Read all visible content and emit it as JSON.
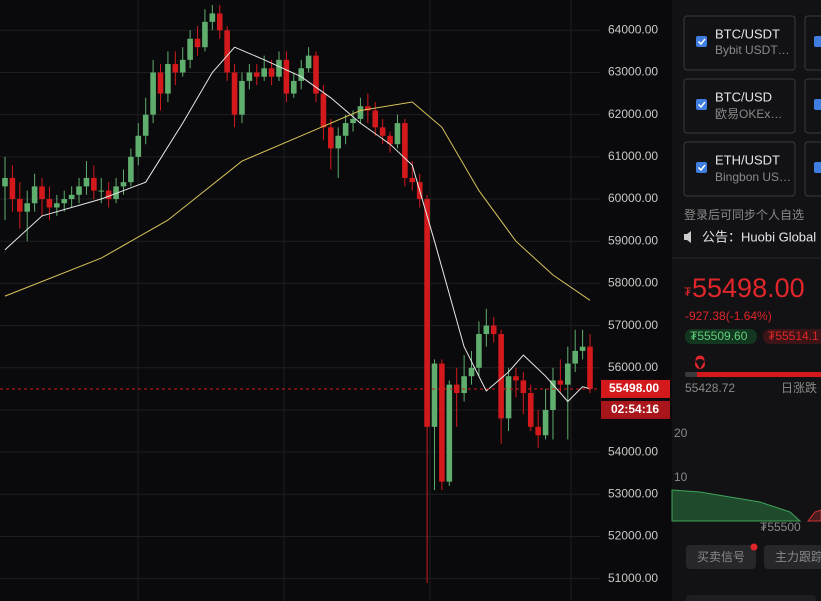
{
  "chart_data": {
    "type": "candlestick",
    "open": [
      60300,
      60500,
      60000,
      59700,
      59900,
      60300,
      60000,
      59800,
      59900,
      60000,
      60100,
      60300,
      60500,
      60200,
      60200,
      60000,
      60300,
      60400,
      61000,
      61500,
      62000,
      63000,
      62500,
      63200,
      63000,
      63300,
      63800,
      63600,
      64200,
      64400,
      64000,
      63000,
      62000,
      62800,
      63000,
      62900,
      63100,
      62900,
      63300,
      62500,
      62800,
      63100,
      63400,
      62500,
      61700,
      61200,
      61500,
      61800,
      61900,
      62200,
      62100,
      61700,
      61500,
      61300,
      61800,
      60500,
      60400,
      60000,
      54600,
      56100,
      53300,
      55600,
      55400,
      55800,
      56000,
      56800,
      57000,
      56800,
      54800,
      55800,
      55700,
      55400,
      54600,
      54400,
      55000,
      55700,
      55600,
      56100,
      56400,
      56500
    ],
    "high": [
      61000,
      60800,
      60400,
      60200,
      60600,
      60500,
      60300,
      60100,
      60200,
      60300,
      60500,
      60900,
      60800,
      60500,
      60400,
      60500,
      60700,
      61200,
      61800,
      62400,
      63300,
      63200,
      63500,
      63500,
      63600,
      64000,
      64100,
      64500,
      64600,
      64600,
      64100,
      63200,
      63000,
      63200,
      63200,
      63400,
      63300,
      63500,
      63500,
      63000,
      63300,
      63600,
      63500,
      62700,
      61900,
      61700,
      62000,
      62100,
      62400,
      62500,
      62300,
      61900,
      61600,
      62000,
      61900,
      60900,
      60600,
      60100,
      56200,
      56200,
      55700,
      56000,
      56300,
      56400,
      57100,
      57400,
      57200,
      56900,
      56000,
      56000,
      55900,
      55600,
      55000,
      55500,
      56000,
      56200,
      56500,
      56900,
      56900,
      56800
    ],
    "low": [
      59500,
      59700,
      59300,
      59000,
      59700,
      59600,
      59500,
      59600,
      59700,
      59800,
      59900,
      60100,
      60000,
      59900,
      59800,
      59900,
      60100,
      60300,
      60800,
      61300,
      61800,
      62100,
      62300,
      62700,
      62900,
      63100,
      63400,
      63500,
      64000,
      63800,
      62800,
      61700,
      61800,
      62600,
      62700,
      62800,
      62700,
      62800,
      62300,
      62400,
      62600,
      63000,
      62300,
      61400,
      60700,
      60500,
      61300,
      61600,
      61800,
      61800,
      61500,
      61300,
      61100,
      61200,
      60300,
      60200,
      59800,
      50900,
      53100,
      53100,
      53200,
      54600,
      55200,
      55600,
      55800,
      56500,
      56600,
      54200,
      54500,
      55300,
      54900,
      54500,
      54100,
      54300,
      54300,
      55400,
      54300,
      55900,
      56200,
      55400
    ],
    "close": [
      60500,
      60000,
      59700,
      59900,
      60300,
      60000,
      59800,
      59900,
      60000,
      60100,
      60300,
      60500,
      60200,
      60200,
      60000,
      60300,
      60400,
      61000,
      61500,
      62000,
      63000,
      62500,
      63200,
      63000,
      63300,
      63800,
      63600,
      64200,
      64400,
      64000,
      63000,
      62000,
      62800,
      63000,
      62900,
      63100,
      62900,
      63300,
      62500,
      62800,
      63100,
      63400,
      62500,
      61700,
      61200,
      61500,
      61800,
      61900,
      62200,
      62100,
      61700,
      61500,
      61300,
      61800,
      60500,
      60400,
      60000,
      54600,
      56100,
      53300,
      55600,
      55400,
      55800,
      56000,
      56800,
      57000,
      56800,
      54800,
      55800,
      55700,
      55400,
      54600,
      54400,
      55000,
      55700,
      55600,
      56100,
      56400,
      56500,
      55498
    ],
    "up_color": "#5fae6e",
    "down_color": "#d3191c",
    "ma_lines": [
      {
        "color": "#e8e8e8",
        "x": [
          0,
          5,
          13,
          19,
          24,
          28,
          31,
          35,
          40,
          44,
          48,
          52,
          55,
          58,
          62,
          65,
          68,
          70,
          73,
          76,
          78,
          79
        ],
        "values": [
          58800,
          59600,
          60000,
          60400,
          61800,
          63000,
          63600,
          63300,
          62900,
          62400,
          61800,
          61300,
          60800,
          59000,
          56500,
          55450,
          55900,
          56300,
          55800,
          55200,
          55550,
          55500
        ]
      },
      {
        "color": "#d9c45a",
        "x": [
          0,
          13,
          22,
          32,
          40,
          48,
          55,
          59,
          64,
          69,
          74,
          79
        ],
        "values": [
          57700,
          58600,
          59500,
          60900,
          61500,
          62100,
          62300,
          61700,
          60200,
          59000,
          58200,
          57600
        ]
      }
    ],
    "ylim": [
      50850,
      64600
    ],
    "yticks": [
      {
        "value": 51000,
        "label": "51000.00"
      },
      {
        "value": 52000,
        "label": "52000.00"
      },
      {
        "value": 53000,
        "label": "53000.00"
      },
      {
        "value": 54000,
        "label": "54000.00"
      },
      {
        "value": 55000,
        "label": "55000.00"
      },
      {
        "value": 56000,
        "label": "56000.00"
      },
      {
        "value": 57000,
        "label": "57000.00"
      },
      {
        "value": 58000,
        "label": "58000.00"
      },
      {
        "value": 59000,
        "label": "59000.00"
      },
      {
        "value": 60000,
        "label": "60000.00"
      },
      {
        "value": 61000,
        "label": "61000.00"
      },
      {
        "value": 62000,
        "label": "62000.00"
      },
      {
        "value": 63000,
        "label": "63000.00"
      },
      {
        "value": 64000,
        "label": "64000.00"
      }
    ],
    "grid": true,
    "last_price": {
      "value": 55498,
      "label": "55498.00"
    },
    "countdown": "02:54:16"
  },
  "sidebar": {
    "cards": [
      {
        "pair": "BTC/USDT",
        "exchange": "Bybit USDT…"
      },
      {
        "pair": "BTC/USD",
        "exchange": "欧易OKEx…"
      },
      {
        "pair": "ETH/USDT",
        "exchange": "Bingbon US…"
      }
    ],
    "login_hint": "登录后可同步个人自选",
    "notice": "公告：Huobi Global",
    "currency": "₮",
    "price": "55498.00",
    "change": "-927.38(-1.64%)",
    "bid": "₮55509.60",
    "ask": "₮55514.1",
    "low_value": "55428.72",
    "range_label": "日涨跌",
    "depth_ticks": [
      "20",
      "10"
    ],
    "depth_price": "₮55500",
    "tabs": [
      "买卖信号",
      "主力跟踪"
    ]
  }
}
